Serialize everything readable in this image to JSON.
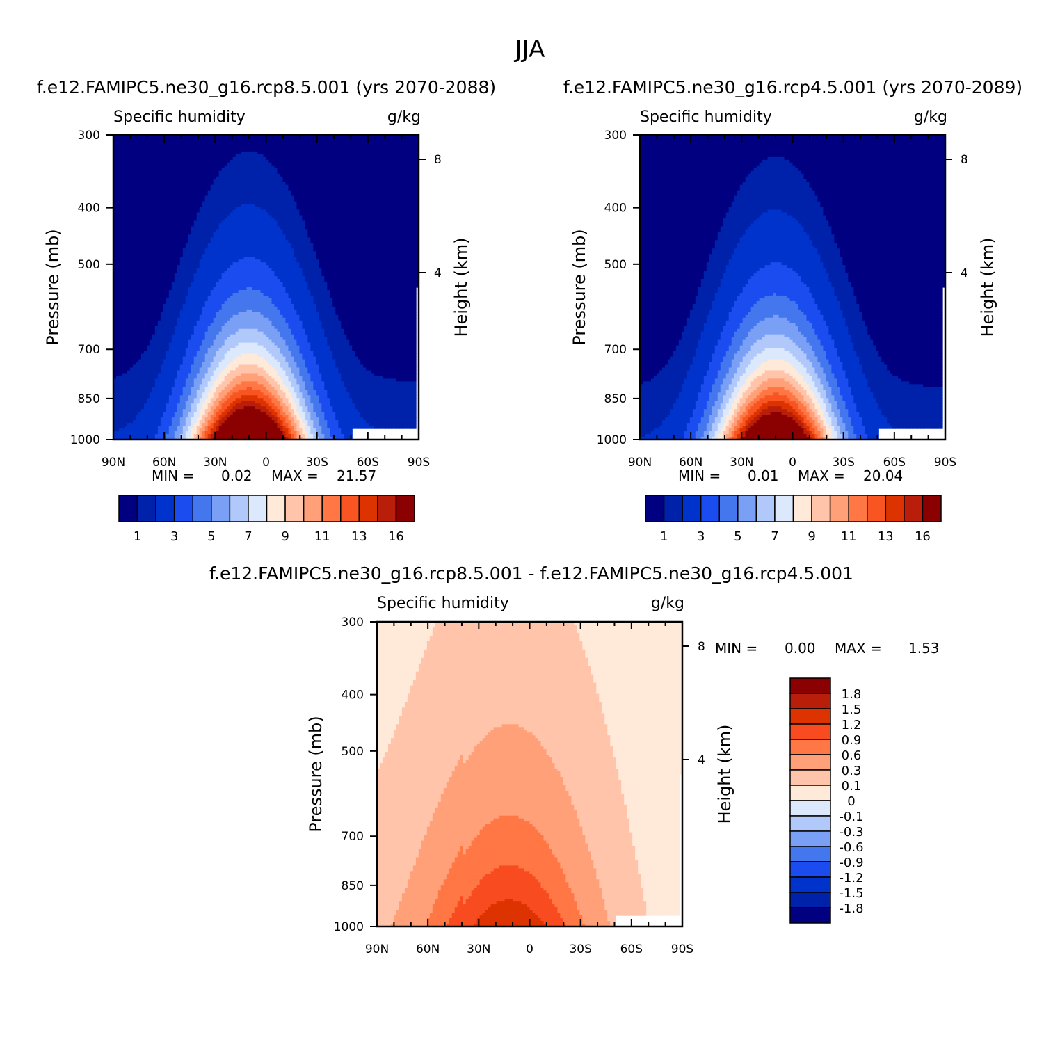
{
  "figure_title": "JJA",
  "chart_data": [
    {
      "type": "heatmap",
      "panel": "left",
      "case_title": "f.e12.FAMIPC5.ne30_g16.rcp8.5.001 (yrs 2070-2088)",
      "left_label": "Specific humidity",
      "right_label": "g/kg",
      "ylabel": "Pressure (mb)",
      "y2label": "Height (km)",
      "xticks": [
        "90N",
        "60N",
        "30N",
        "0",
        "30S",
        "60S",
        "90S"
      ],
      "yticks": [
        "300",
        "400",
        "500",
        "700",
        "850",
        "1000"
      ],
      "y2ticks": [
        "8",
        "4"
      ],
      "min_label": "MIN =",
      "min_value": "0.02",
      "max_label": "MAX =",
      "max_value": "21.57",
      "contour_levels": [
        0.5,
        1,
        2,
        3,
        4,
        5,
        6,
        7,
        8,
        9,
        10,
        11,
        12,
        13,
        14,
        16
      ],
      "colorbar_labels": [
        "1",
        "3",
        "5",
        "7",
        "9",
        "11",
        "13",
        "16"
      ],
      "notes": "zonal-mean specific humidity, max ~21.6 g/kg near surface at ~10N"
    },
    {
      "type": "heatmap",
      "panel": "right",
      "case_title": "f.e12.FAMIPC5.ne30_g16.rcp4.5.001 (yrs 2070-2089)",
      "left_label": "Specific humidity",
      "right_label": "g/kg",
      "ylabel": "Pressure (mb)",
      "y2label": "Height (km)",
      "xticks": [
        "90N",
        "60N",
        "30N",
        "0",
        "30S",
        "60S",
        "90S"
      ],
      "yticks": [
        "300",
        "400",
        "500",
        "700",
        "850",
        "1000"
      ],
      "y2ticks": [
        "8",
        "4"
      ],
      "min_label": "MIN =",
      "min_value": "0.01",
      "max_label": "MAX =",
      "max_value": "20.04",
      "contour_levels": [
        0.5,
        1,
        2,
        3,
        4,
        5,
        6,
        7,
        8,
        9,
        10,
        11,
        12,
        13,
        14,
        16
      ],
      "colorbar_labels": [
        "1",
        "3",
        "5",
        "7",
        "9",
        "11",
        "13",
        "16"
      ]
    },
    {
      "type": "heatmap",
      "panel": "difference",
      "case_title": "f.e12.FAMIPC5.ne30_g16.rcp8.5.001 - f.e12.FAMIPC5.ne30_g16.rcp4.5.001",
      "left_label": "Specific humidity",
      "right_label": "g/kg",
      "ylabel": "Pressure (mb)",
      "y2label": "Height (km)",
      "xticks": [
        "90N",
        "60N",
        "30N",
        "0",
        "30S",
        "60S",
        "90S"
      ],
      "yticks": [
        "300",
        "400",
        "500",
        "700",
        "850",
        "1000"
      ],
      "y2ticks": [
        "8",
        "4"
      ],
      "min_label": "MIN =",
      "min_value": "0.00",
      "max_label": "MAX =",
      "max_value": "1.53",
      "colorbar_labels": [
        "1.8",
        "1.5",
        "1.2",
        "0.9",
        "0.6",
        "0.3",
        "0.1",
        "0",
        "-0.1",
        "-0.3",
        "-0.6",
        "-0.9",
        "-1.2",
        "-1.5",
        "-1.8"
      ]
    }
  ],
  "colors": {
    "seq": [
      "#000080",
      "#0022aa",
      "#0033cc",
      "#1a4cf0",
      "#4477ee",
      "#7aa0f5",
      "#b0c8fa",
      "#dce8fc",
      "#ffe9d9",
      "#ffc4aa",
      "#ffa078",
      "#ff7744",
      "#f85522",
      "#dd3300",
      "#b81e0a",
      "#8b0000"
    ],
    "diff": [
      "#8b0000",
      "#b81e0a",
      "#dd3300",
      "#f84c20",
      "#ff7744",
      "#ffa078",
      "#ffc4aa",
      "#ffe9d9",
      "#dce8fc",
      "#b0c8fa",
      "#7aa0f5",
      "#4477ee",
      "#1a4cf0",
      "#0033cc",
      "#0022aa",
      "#000080"
    ]
  }
}
